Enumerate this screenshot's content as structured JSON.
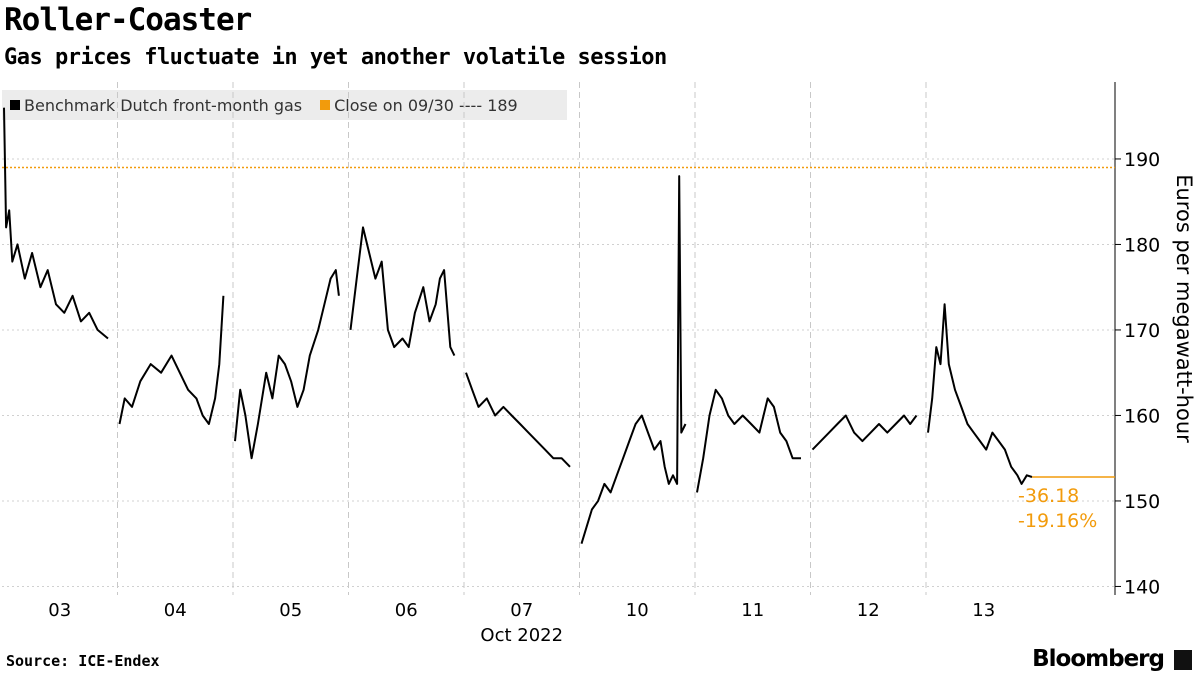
{
  "title": "Roller-Coaster",
  "subtitle": "Gas prices fluctuate in yet another volatile session",
  "source": "Source: ICE-Endex",
  "brand": "Bloomberg",
  "colors": {
    "series": "#000000",
    "close": "#f29b0c",
    "grid": "#d0d0d0",
    "legend_bg": "#ececec"
  },
  "legend": [
    {
      "label": "Benchmark Dutch front-month gas",
      "color": "#000000"
    },
    {
      "label": "Close on 09/30 ---- 189",
      "color": "#f29b0c"
    }
  ],
  "annotations": {
    "change_abs": "-36.18",
    "change_pct": "-19.16%"
  },
  "chart_data": {
    "type": "line",
    "title": "Roller-Coaster",
    "subtitle": "Gas prices fluctuate in yet another volatile session",
    "ylabel": "Euros per megawatt-hour",
    "xlabel": "Oct 2022",
    "ylim": [
      139,
      199
    ],
    "yticks": [
      140,
      150,
      160,
      170,
      180,
      190
    ],
    "x_categories": [
      "03",
      "04",
      "05",
      "06",
      "07",
      "10",
      "11",
      "12",
      "13"
    ],
    "reference_line": {
      "label": "Close on 09/30",
      "value": 189
    },
    "last_value": 152.8,
    "grid": true,
    "legend_position": "top-left",
    "series": [
      {
        "name": "Benchmark Dutch front-month gas",
        "sessions": [
          {
            "day": "03",
            "points": [
              [
                0,
                196
              ],
              [
                0.02,
                182
              ],
              [
                0.05,
                184
              ],
              [
                0.08,
                178
              ],
              [
                0.13,
                180
              ],
              [
                0.2,
                176
              ],
              [
                0.27,
                179
              ],
              [
                0.35,
                175
              ],
              [
                0.42,
                177
              ],
              [
                0.5,
                173
              ],
              [
                0.58,
                172
              ],
              [
                0.66,
                174
              ],
              [
                0.74,
                171
              ],
              [
                0.82,
                172
              ],
              [
                0.9,
                170
              ],
              [
                1,
                169
              ]
            ]
          },
          {
            "day": "04",
            "points": [
              [
                0,
                159
              ],
              [
                0.05,
                162
              ],
              [
                0.12,
                161
              ],
              [
                0.2,
                164
              ],
              [
                0.3,
                166
              ],
              [
                0.4,
                165
              ],
              [
                0.5,
                167
              ],
              [
                0.58,
                165
              ],
              [
                0.66,
                163
              ],
              [
                0.74,
                162
              ],
              [
                0.8,
                160
              ],
              [
                0.86,
                159
              ],
              [
                0.92,
                162
              ],
              [
                0.96,
                166
              ],
              [
                1,
                174
              ]
            ]
          },
          {
            "day": "05",
            "points": [
              [
                0,
                157
              ],
              [
                0.05,
                163
              ],
              [
                0.1,
                160
              ],
              [
                0.16,
                155
              ],
              [
                0.22,
                159
              ],
              [
                0.3,
                165
              ],
              [
                0.36,
                162
              ],
              [
                0.42,
                167
              ],
              [
                0.48,
                166
              ],
              [
                0.54,
                164
              ],
              [
                0.6,
                161
              ],
              [
                0.66,
                163
              ],
              [
                0.72,
                167
              ],
              [
                0.8,
                170
              ],
              [
                0.86,
                173
              ],
              [
                0.92,
                176
              ],
              [
                0.97,
                177
              ],
              [
                1,
                174
              ]
            ]
          },
          {
            "day": "06",
            "points": [
              [
                0,
                170
              ],
              [
                0.06,
                176
              ],
              [
                0.12,
                182
              ],
              [
                0.18,
                179
              ],
              [
                0.24,
                176
              ],
              [
                0.3,
                178
              ],
              [
                0.36,
                170
              ],
              [
                0.42,
                168
              ],
              [
                0.5,
                169
              ],
              [
                0.56,
                168
              ],
              [
                0.62,
                172
              ],
              [
                0.7,
                175
              ],
              [
                0.76,
                171
              ],
              [
                0.82,
                173
              ],
              [
                0.86,
                176
              ],
              [
                0.9,
                177
              ],
              [
                0.96,
                168
              ],
              [
                1,
                167
              ]
            ]
          },
          {
            "day": "07",
            "points": [
              [
                0,
                165
              ],
              [
                0.06,
                163
              ],
              [
                0.12,
                161
              ],
              [
                0.2,
                162
              ],
              [
                0.28,
                160
              ],
              [
                0.36,
                161
              ],
              [
                0.44,
                160
              ],
              [
                0.52,
                159
              ],
              [
                0.6,
                158
              ],
              [
                0.68,
                157
              ],
              [
                0.76,
                156
              ],
              [
                0.84,
                155
              ],
              [
                0.92,
                155
              ],
              [
                1,
                154
              ]
            ]
          },
          {
            "day": "10",
            "points": [
              [
                0,
                145
              ],
              [
                0.05,
                147
              ],
              [
                0.1,
                149
              ],
              [
                0.16,
                150
              ],
              [
                0.22,
                152
              ],
              [
                0.28,
                151
              ],
              [
                0.34,
                153
              ],
              [
                0.4,
                155
              ],
              [
                0.46,
                157
              ],
              [
                0.52,
                159
              ],
              [
                0.58,
                160
              ],
              [
                0.64,
                158
              ],
              [
                0.7,
                156
              ],
              [
                0.76,
                157
              ],
              [
                0.8,
                154
              ],
              [
                0.84,
                152
              ],
              [
                0.88,
                153
              ],
              [
                0.92,
                152
              ],
              [
                0.94,
                188
              ],
              [
                0.96,
                158
              ],
              [
                1,
                159
              ]
            ]
          },
          {
            "day": "11",
            "points": [
              [
                0,
                151
              ],
              [
                0.06,
                155
              ],
              [
                0.12,
                160
              ],
              [
                0.18,
                163
              ],
              [
                0.24,
                162
              ],
              [
                0.3,
                160
              ],
              [
                0.36,
                159
              ],
              [
                0.44,
                160
              ],
              [
                0.52,
                159
              ],
              [
                0.6,
                158
              ],
              [
                0.68,
                162
              ],
              [
                0.74,
                161
              ],
              [
                0.8,
                158
              ],
              [
                0.86,
                157
              ],
              [
                0.92,
                155
              ],
              [
                1,
                155
              ]
            ]
          },
          {
            "day": "12",
            "points": [
              [
                0,
                156
              ],
              [
                0.08,
                157
              ],
              [
                0.16,
                158
              ],
              [
                0.24,
                159
              ],
              [
                0.32,
                160
              ],
              [
                0.4,
                158
              ],
              [
                0.48,
                157
              ],
              [
                0.56,
                158
              ],
              [
                0.64,
                159
              ],
              [
                0.72,
                158
              ],
              [
                0.8,
                159
              ],
              [
                0.88,
                160
              ],
              [
                0.94,
                159
              ],
              [
                1,
                160
              ]
            ]
          },
          {
            "day": "13",
            "points": [
              [
                0,
                158
              ],
              [
                0.04,
                162
              ],
              [
                0.08,
                168
              ],
              [
                0.12,
                166
              ],
              [
                0.16,
                173
              ],
              [
                0.2,
                166
              ],
              [
                0.26,
                163
              ],
              [
                0.32,
                161
              ],
              [
                0.38,
                159
              ],
              [
                0.44,
                158
              ],
              [
                0.5,
                157
              ],
              [
                0.56,
                156
              ],
              [
                0.62,
                158
              ],
              [
                0.68,
                157
              ],
              [
                0.74,
                156
              ],
              [
                0.8,
                154
              ],
              [
                0.86,
                153
              ],
              [
                0.9,
                152
              ],
              [
                0.95,
                153
              ],
              [
                1,
                152.8
              ]
            ]
          }
        ]
      }
    ]
  }
}
